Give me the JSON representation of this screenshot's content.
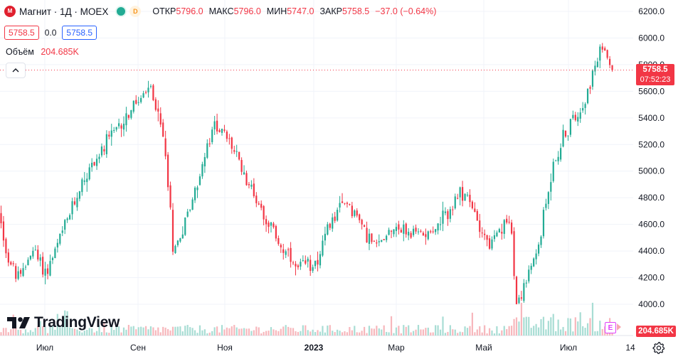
{
  "header": {
    "logo_letter": "M",
    "symbol_title": "Магнит · 1Д · MOEX",
    "delay_badge": "D",
    "open_label": "ОТКР",
    "open_value": "5796.0",
    "high_label": "МАКС",
    "high_value": "5796.0",
    "low_label": "МИН",
    "low_value": "5747.0",
    "close_label": "ЗАКР",
    "close_value": "5758.5",
    "change": "−37.0 (−0.64%)"
  },
  "quote": {
    "bid": "5758.5",
    "spread": "0.0",
    "ask": "5758.5"
  },
  "volume_legend": {
    "label": "Объём",
    "value": "204.685K"
  },
  "branding": {
    "name": "TradingView"
  },
  "last_price": {
    "price": "5758.5",
    "countdown": "07:52:23"
  },
  "volume_tag": "204.685K",
  "event_label": "E",
  "colors": {
    "up": "#22ab94",
    "down": "#f23645",
    "up_volume": "#a8ddd4",
    "down_volume": "#f7b7bc",
    "grid": "#f0f3fa"
  },
  "chart_data": {
    "type": "candlestick",
    "y_ticks": [
      "6200.0",
      "6000.0",
      "5800.0",
      "5600.0",
      "5400.0",
      "5200.0",
      "5000.0",
      "4800.0",
      "4600.0",
      "4400.0",
      "4200.0",
      "4000.0"
    ],
    "x_ticks": [
      "Июл",
      "Сен",
      "Ноя",
      "2023",
      "Мар",
      "Май",
      "Июл",
      "14"
    ],
    "ylim": [
      3960,
      6220
    ],
    "current_price": 5758.5,
    "grid": true,
    "anchors": [
      {
        "date": "Июн 2022",
        "price": 4680
      },
      {
        "date": "Июн 2022",
        "price": 4350
      },
      {
        "date": "Июл 2022",
        "price": 4180
      },
      {
        "date": "Июл 2022",
        "price": 4420
      },
      {
        "date": "Июл 2022",
        "price": 4230
      },
      {
        "date": "Авг 2022",
        "price": 4950
      },
      {
        "date": "Авг 2022",
        "price": 5250
      },
      {
        "date": "Сен 2022",
        "price": 5500
      },
      {
        "date": "Сен 2022",
        "price": 5620
      },
      {
        "date": "Сен 2022",
        "price": 5200
      },
      {
        "date": "Окт 2022",
        "price": 4380
      },
      {
        "date": "Окт 2022",
        "price": 4750
      },
      {
        "date": "Окт 2022",
        "price": 5370
      },
      {
        "date": "Ноя 2022",
        "price": 5200
      },
      {
        "date": "Ноя 2022",
        "price": 4880
      },
      {
        "date": "Дек 2022",
        "price": 4450
      },
      {
        "date": "Дек 2022",
        "price": 4250
      },
      {
        "date": "Янв 2023",
        "price": 4330
      },
      {
        "date": "Янв 2023",
        "price": 4650
      },
      {
        "date": "Фев 2023",
        "price": 4780
      },
      {
        "date": "Фев 2023",
        "price": 4420
      },
      {
        "date": "Мар 2023",
        "price": 4600
      },
      {
        "date": "Мар 2023",
        "price": 4520
      },
      {
        "date": "Апр 2023",
        "price": 4580
      },
      {
        "date": "Апр 2023",
        "price": 4850
      },
      {
        "date": "Май 2023",
        "price": 4440
      },
      {
        "date": "Май 2023",
        "price": 4640
      },
      {
        "date": "Май 2023",
        "price": 4000
      },
      {
        "date": "Июн 2023",
        "price": 4380
      },
      {
        "date": "Июн 2023",
        "price": 5000
      },
      {
        "date": "Июн 2023",
        "price": 5250
      },
      {
        "date": "Июл 2023",
        "price": 5550
      },
      {
        "date": "Июл 2023",
        "price": 5950
      },
      {
        "date": "Июл 2023",
        "price": 5758.5
      }
    ],
    "volume_last": "204.685K"
  }
}
